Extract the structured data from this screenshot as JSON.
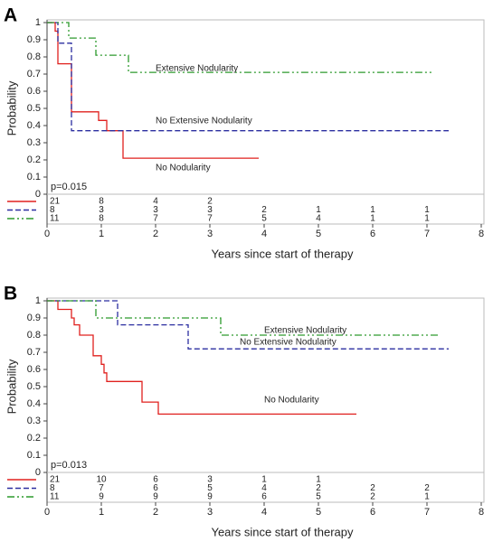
{
  "chart_data": [
    {
      "type": "line",
      "step": "post",
      "panel": "A",
      "xlabel": "Years since start of therapy",
      "ylabel": "Probability",
      "annotation": "p=0.015",
      "xlim": [
        0,
        8
      ],
      "xticks": [
        0,
        1,
        2,
        3,
        4,
        5,
        6,
        7,
        8
      ],
      "ylim": [
        0,
        1
      ],
      "yticks": [
        0,
        0.1,
        0.2,
        0.3,
        0.4,
        0.5,
        0.6,
        0.7,
        0.8,
        0.9,
        1
      ],
      "at_risk_x": [
        0,
        1,
        2,
        3,
        4,
        5,
        6,
        7
      ],
      "series": [
        {
          "name": "No Nodularity",
          "color": "#e0201e",
          "dash": "none",
          "x": [
            0,
            0.15,
            0.2,
            0.45,
            0.95,
            1.1,
            1.4,
            3.9
          ],
          "values": [
            1,
            0.95,
            0.76,
            0.48,
            0.43,
            0.37,
            0.21,
            0.21
          ],
          "at_risk": [
            21,
            8,
            4,
            2
          ]
        },
        {
          "name": "No Extensive Nodularity",
          "color": "#2b2ea0",
          "dash": "6,3",
          "x": [
            0,
            0.2,
            0.45,
            7.4
          ],
          "values": [
            1,
            0.88,
            0.37,
            0.37
          ],
          "at_risk": [
            8,
            3,
            3,
            3,
            2,
            1,
            1,
            1
          ]
        },
        {
          "name": "Extensive Nodularity",
          "color": "#2d9a2d",
          "dash": "8,3,2,3,2,3",
          "x": [
            0,
            0.4,
            0.9,
            1.5,
            7.1
          ],
          "values": [
            1,
            0.91,
            0.81,
            0.71,
            0.71
          ],
          "at_risk": [
            11,
            8,
            7,
            7,
            5,
            4,
            1,
            1
          ]
        }
      ]
    },
    {
      "type": "line",
      "step": "post",
      "panel": "B",
      "xlabel": "Years since start of therapy",
      "ylabel": "Probability",
      "annotation": "p=0.013",
      "xlim": [
        0,
        8
      ],
      "xticks": [
        0,
        1,
        2,
        3,
        4,
        5,
        6,
        7,
        8
      ],
      "ylim": [
        0,
        1
      ],
      "yticks": [
        0,
        0.1,
        0.2,
        0.3,
        0.4,
        0.5,
        0.6,
        0.7,
        0.8,
        0.9,
        1
      ],
      "at_risk_x": [
        0,
        1,
        2,
        3,
        4,
        5,
        6,
        7
      ],
      "series": [
        {
          "name": "No Nodularity",
          "color": "#e0201e",
          "dash": "none",
          "x": [
            0,
            0.2,
            0.45,
            0.5,
            0.6,
            0.85,
            1.0,
            1.05,
            1.1,
            1.75,
            2.05,
            5.7
          ],
          "values": [
            1,
            0.95,
            0.9,
            0.86,
            0.8,
            0.68,
            0.63,
            0.58,
            0.53,
            0.41,
            0.34,
            0.34
          ],
          "at_risk": [
            21,
            10,
            6,
            3,
            1,
            1
          ]
        },
        {
          "name": "No Extensive Nodularity",
          "color": "#2b2ea0",
          "dash": "6,3",
          "x": [
            0,
            1.3,
            2.6,
            7.4
          ],
          "values": [
            1,
            0.86,
            0.72,
            0.72
          ],
          "at_risk": [
            8,
            7,
            6,
            5,
            4,
            2,
            2,
            2
          ]
        },
        {
          "name": "Extensive Nodularity",
          "color": "#2d9a2d",
          "dash": "8,3,2,3,2,3",
          "x": [
            0,
            0.9,
            3.2,
            7.2
          ],
          "values": [
            1,
            0.9,
            0.8,
            0.8
          ],
          "at_risk": [
            11,
            9,
            9,
            9,
            6,
            5,
            2,
            1
          ]
        }
      ]
    }
  ]
}
